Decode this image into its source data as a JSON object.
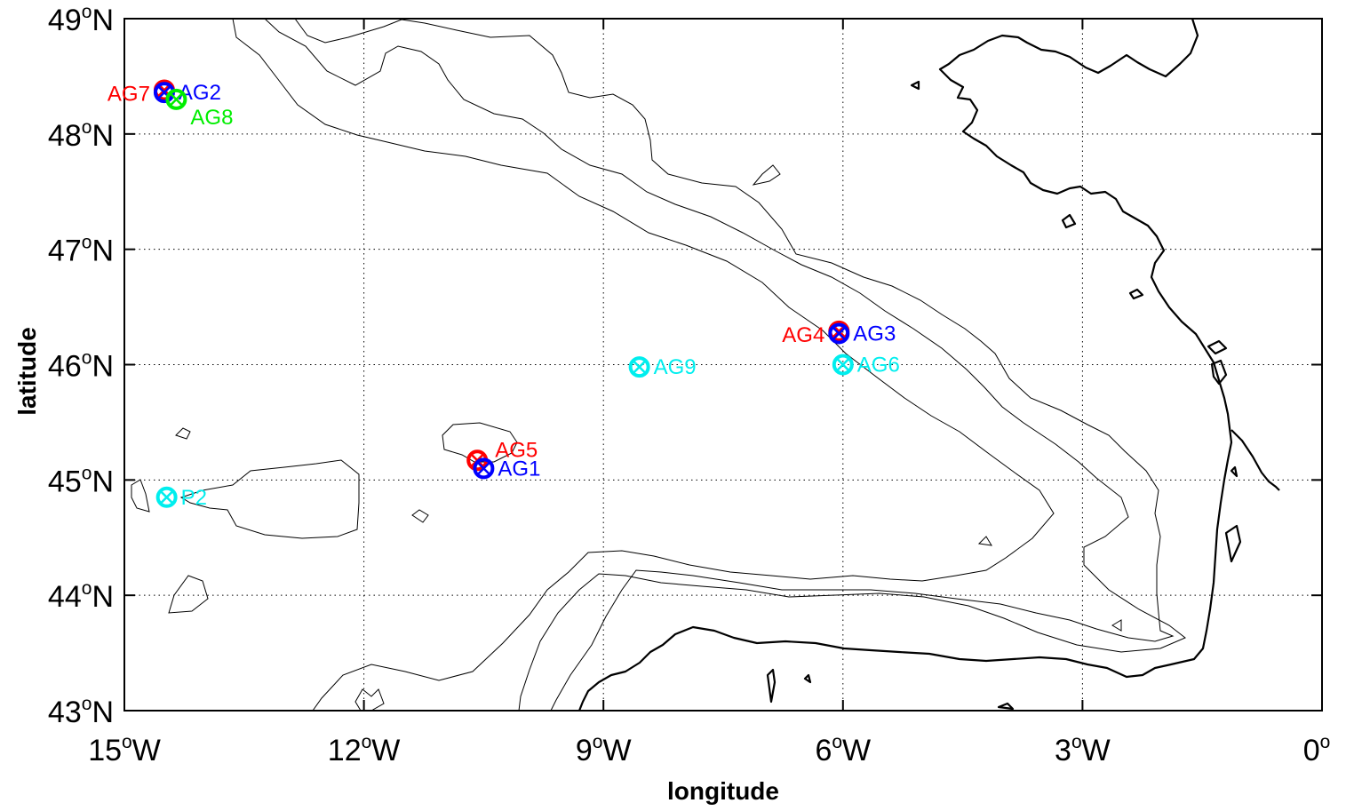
{
  "map": {
    "xlabel": "longitude",
    "ylabel": "latitude",
    "lon_range": [
      -15,
      0
    ],
    "lat_range": [
      43,
      49
    ],
    "grid": "dotted",
    "x_ticks": [
      {
        "lon": -15,
        "num": "15",
        "deg": "o",
        "hem": "W"
      },
      {
        "lon": -12,
        "num": "12",
        "deg": "o",
        "hem": "W"
      },
      {
        "lon": -9,
        "num": "9",
        "deg": "o",
        "hem": "W"
      },
      {
        "lon": -6,
        "num": "6",
        "deg": "o",
        "hem": "W"
      },
      {
        "lon": -3,
        "num": "3",
        "deg": "o",
        "hem": "W"
      },
      {
        "lon": 0,
        "num": "0",
        "deg": "o",
        "hem": ""
      }
    ],
    "y_ticks": [
      {
        "lat": 43,
        "num": "43",
        "deg": "o",
        "hem": "N"
      },
      {
        "lat": 44,
        "num": "44",
        "deg": "o",
        "hem": "N"
      },
      {
        "lat": 45,
        "num": "45",
        "deg": "o",
        "hem": "N"
      },
      {
        "lat": 46,
        "num": "46",
        "deg": "o",
        "hem": "N"
      },
      {
        "lat": 47,
        "num": "47",
        "deg": "o",
        "hem": "N"
      },
      {
        "lat": 48,
        "num": "48",
        "deg": "o",
        "hem": "N"
      },
      {
        "lat": 49,
        "num": "49",
        "deg": "o",
        "hem": "N"
      }
    ],
    "colors": {
      "red": "#ff0000",
      "blue": "#0000ff",
      "green": "#00ee00",
      "cyan": "#00eeee"
    },
    "stations": [
      {
        "name": "AG7",
        "lon": -14.5,
        "lat": 48.38,
        "color": "#ff0000",
        "label_side": "left"
      },
      {
        "name": "AG2",
        "lon": -14.5,
        "lat": 48.36,
        "color": "#0000ff",
        "label_side": "right"
      },
      {
        "name": "AG8",
        "lon": -14.35,
        "lat": 48.3,
        "color": "#00ee00",
        "label_side": "below-right"
      },
      {
        "name": "AG4",
        "lon": -6.05,
        "lat": 46.29,
        "color": "#ff0000",
        "label_side": "left"
      },
      {
        "name": "AG3",
        "lon": -6.05,
        "lat": 46.27,
        "color": "#0000ff",
        "label_side": "right"
      },
      {
        "name": "AG9",
        "lon": -8.55,
        "lat": 45.98,
        "color": "#00eeee",
        "label_side": "right"
      },
      {
        "name": "AG6",
        "lon": -6.0,
        "lat": 46.0,
        "color": "#00eeee",
        "label_side": "right"
      },
      {
        "name": "AG5",
        "lon": -10.58,
        "lat": 45.17,
        "color": "#ff0000",
        "label_side": "upper-right"
      },
      {
        "name": "AG1",
        "lon": -10.5,
        "lat": 45.1,
        "color": "#0000ff",
        "label_side": "right"
      },
      {
        "name": "P2",
        "lon": -14.47,
        "lat": 44.85,
        "color": "#00eeee",
        "label_side": "right"
      }
    ]
  }
}
